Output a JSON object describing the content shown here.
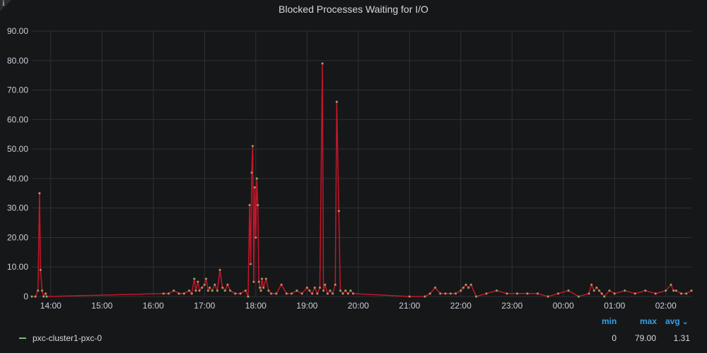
{
  "panel": {
    "title": "Blocked Processes Waiting for I/O",
    "info_icon": "info-icon"
  },
  "colors": {
    "background": "#161719",
    "line": "#c4162a",
    "points": "#73bf69",
    "legend_header": "#33a2e5"
  },
  "legend": {
    "headers": {
      "min": "min",
      "max": "max",
      "avg": "avg"
    },
    "sort_icon": "chevron-down-icon",
    "series_name": "pxc-cluster1-pxc-0",
    "min": "0",
    "max": "79.00",
    "avg": "1.31"
  },
  "chart_data": {
    "type": "line",
    "title": "Blocked Processes Waiting for I/O",
    "y_tick_labels": [
      "0",
      "10.00",
      "20.00",
      "30.00",
      "40.00",
      "50.00",
      "60.00",
      "70.00",
      "80.00",
      "90.00"
    ],
    "x_tick_labels": [
      "14:00",
      "15:00",
      "16:00",
      "17:00",
      "18:00",
      "19:00",
      "20:00",
      "21:00",
      "22:00",
      "23:00",
      "00:00",
      "01:00",
      "02:00"
    ],
    "ylim": [
      0,
      90
    ],
    "xlim_hours": [
      13.63,
      26.5
    ],
    "grid": true,
    "legend_placement": "bottom-left",
    "series": [
      {
        "name": "pxc-cluster1-pxc-0",
        "x_hours": [
          13.63,
          13.7,
          13.75,
          13.78,
          13.8,
          13.83,
          13.86,
          13.9,
          13.92,
          16.2,
          16.3,
          16.4,
          16.5,
          16.6,
          16.7,
          16.75,
          16.8,
          16.83,
          16.87,
          16.9,
          16.95,
          17.0,
          17.03,
          17.07,
          17.1,
          17.15,
          17.2,
          17.25,
          17.3,
          17.35,
          17.4,
          17.45,
          17.5,
          17.6,
          17.7,
          17.8,
          17.85,
          17.88,
          17.9,
          17.92,
          17.94,
          17.96,
          17.98,
          18.0,
          18.02,
          18.04,
          18.06,
          18.08,
          18.1,
          18.12,
          18.15,
          18.2,
          18.25,
          18.3,
          18.4,
          18.5,
          18.6,
          18.7,
          18.8,
          18.9,
          19.0,
          19.05,
          19.1,
          19.15,
          19.2,
          19.25,
          19.3,
          19.32,
          19.35,
          19.4,
          19.45,
          19.5,
          19.55,
          19.58,
          19.62,
          19.65,
          19.7,
          19.75,
          19.8,
          19.85,
          19.9,
          21.0,
          21.3,
          21.4,
          21.5,
          21.6,
          21.7,
          21.8,
          21.9,
          22.0,
          22.05,
          22.1,
          22.15,
          22.2,
          22.3,
          22.5,
          22.7,
          22.9,
          23.1,
          23.3,
          23.5,
          23.7,
          23.9,
          24.1,
          24.3,
          24.5,
          24.55,
          24.6,
          24.65,
          24.7,
          24.75,
          24.8,
          24.9,
          25.0,
          25.2,
          25.4,
          25.6,
          25.8,
          26.0,
          26.1,
          26.15,
          26.2,
          26.3,
          26.4,
          26.5
        ],
        "values": [
          0,
          0,
          2,
          35,
          9,
          2,
          0,
          1,
          0,
          1,
          1,
          2,
          1,
          1,
          2,
          1,
          6,
          2,
          5,
          2,
          3,
          4,
          6,
          2,
          3,
          2,
          4,
          2,
          9,
          3,
          2,
          4,
          2,
          1,
          1,
          2,
          0,
          31,
          11,
          42,
          51,
          5,
          37,
          20,
          40,
          31,
          5,
          3,
          2,
          6,
          3,
          6,
          2,
          1,
          1,
          4,
          1,
          1,
          2,
          1,
          3,
          2,
          1,
          3,
          1,
          3,
          79,
          2,
          4,
          1,
          2,
          1,
          4,
          66,
          29,
          2,
          1,
          2,
          1,
          2,
          1,
          0,
          0,
          1,
          3,
          1,
          1,
          1,
          1,
          2,
          3,
          4,
          3,
          4,
          0,
          1,
          2,
          1,
          1,
          1,
          1,
          0,
          1,
          2,
          0,
          1,
          4,
          2,
          3,
          2,
          1,
          0,
          2,
          1,
          2,
          1,
          2,
          1,
          2,
          4,
          2,
          2,
          1,
          1,
          2
        ]
      }
    ]
  }
}
